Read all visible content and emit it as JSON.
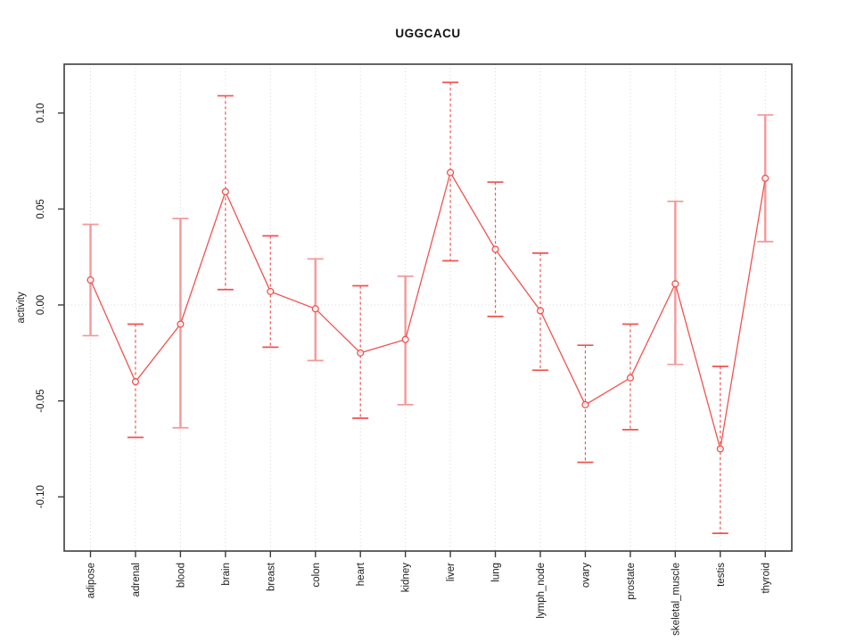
{
  "figure": {
    "title": "UGGCACU",
    "ylabel": "activity"
  },
  "chart_data": {
    "type": "line",
    "title": "UGGCACU",
    "xlabel": "",
    "ylabel": "activity",
    "legend": "none",
    "grid": "dotted vertical gridline at each category; dotted horizontal line at y=0",
    "categories": [
      "adipose",
      "adrenal",
      "blood",
      "brain",
      "breast",
      "colon",
      "heart",
      "kidney",
      "liver",
      "lung",
      "lymph_node",
      "ovary",
      "prostate",
      "skeletal_muscle",
      "testis",
      "thyroid"
    ],
    "series": [
      {
        "name": "activity",
        "values": [
          0.013,
          -0.04,
          -0.01,
          0.059,
          0.007,
          -0.002,
          -0.025,
          -0.018,
          0.069,
          0.029,
          -0.003,
          -0.052,
          -0.038,
          0.011,
          -0.075,
          0.066
        ],
        "err_high": [
          0.042,
          -0.01,
          0.045,
          0.109,
          0.036,
          0.024,
          0.01,
          0.015,
          0.116,
          0.064,
          0.027,
          -0.021,
          -0.01,
          0.054,
          -0.032,
          0.099
        ],
        "err_low": [
          -0.016,
          -0.069,
          -0.064,
          0.008,
          -0.022,
          -0.029,
          -0.059,
          -0.052,
          0.023,
          -0.006,
          -0.034,
          -0.082,
          -0.065,
          -0.031,
          -0.119,
          0.033
        ]
      }
    ],
    "error_bar_styles": [
      "solid",
      "dashed",
      "solid",
      "dashed",
      "dashed",
      "solid",
      "dashed",
      "solid",
      "dashed",
      "dashed",
      "dashed",
      "dashed",
      "dashed",
      "solid",
      "dashed",
      "solid"
    ],
    "ytick_values": [
      -0.1,
      -0.05,
      0.0,
      0.05,
      0.1
    ],
    "ytick_labels": [
      "-0.10",
      "-0.05",
      "0.00",
      "0.05",
      "0.10"
    ],
    "ylim": [
      -0.128,
      0.125
    ],
    "colors": {
      "line": "#ef5350",
      "marker_stroke": "#ef5350",
      "marker_fill": "#ffffff",
      "error_bar_solid": "#f59898",
      "error_bar_dashed": "#ef5350",
      "gridline": "#d9d9d9",
      "zero_line": "#d9d9d9",
      "axis_box": "#3d3d3d",
      "tick_text": "#1a1a1a",
      "title_text": "#111111",
      "background": "#ffffff"
    }
  }
}
